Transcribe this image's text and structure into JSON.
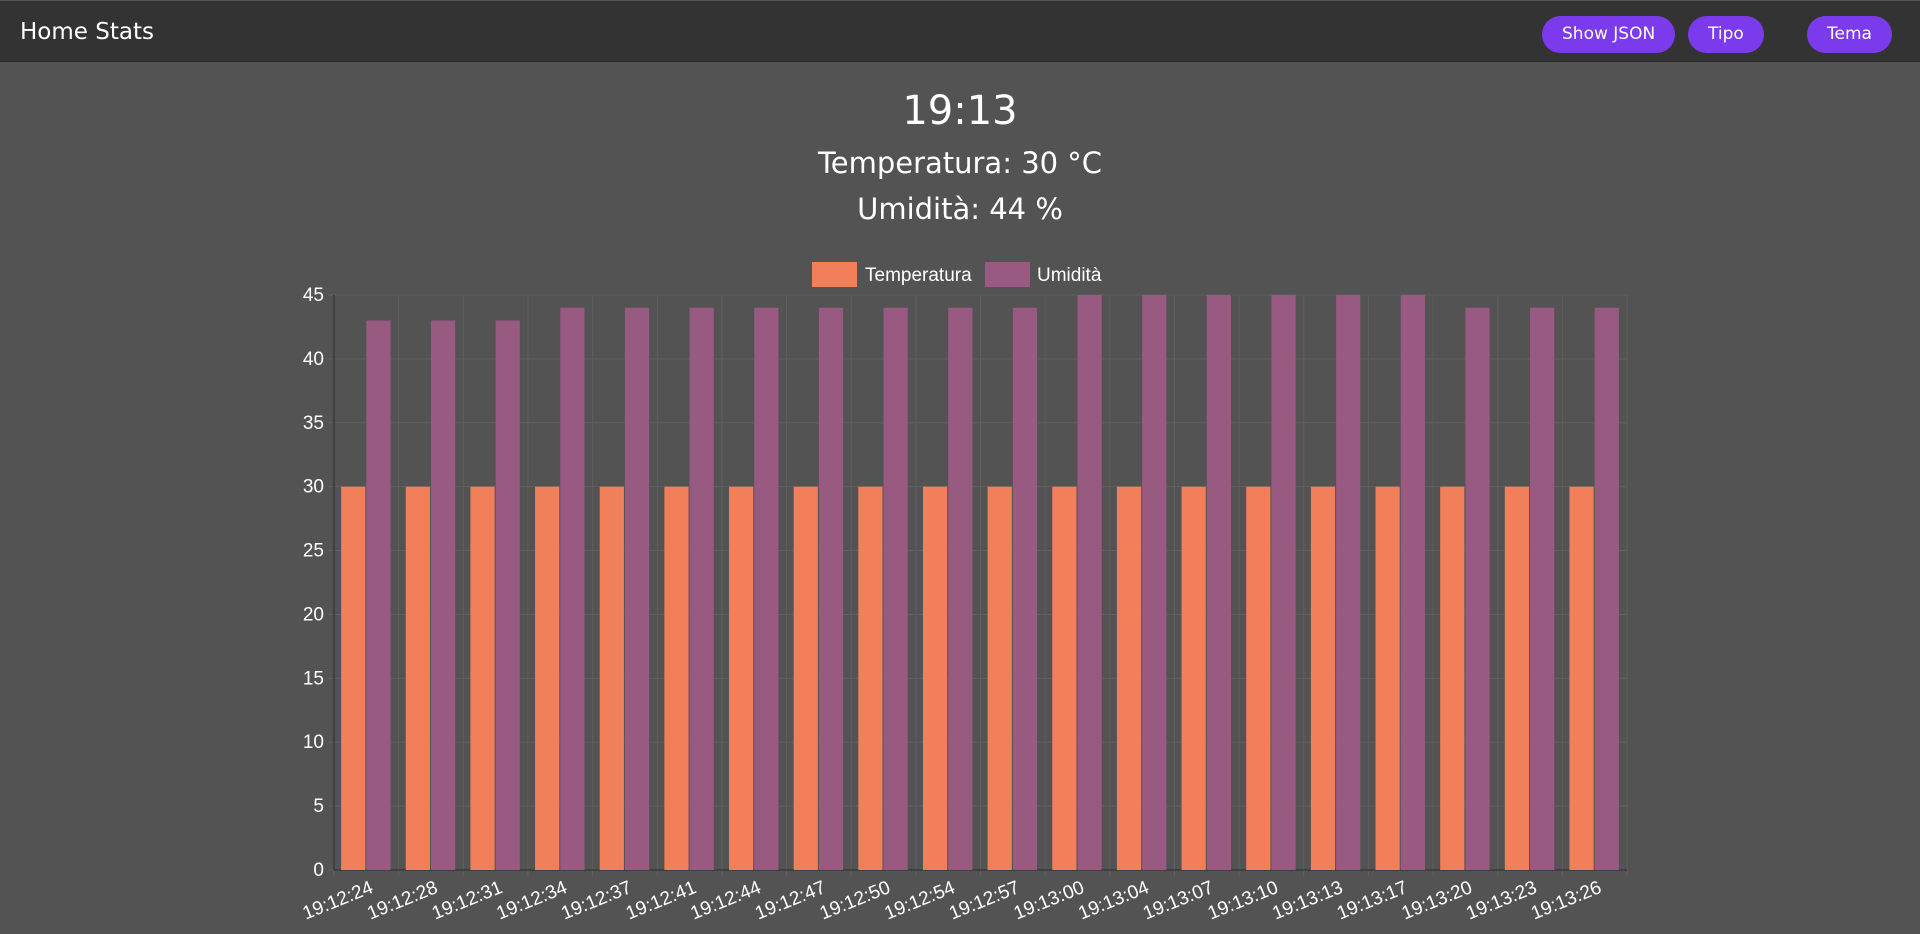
{
  "navbar": {
    "title": "Home Stats",
    "buttons": {
      "show_json": "Show JSON",
      "tipo": "Tipo",
      "tema": "Tema"
    }
  },
  "header": {
    "time": "19:13",
    "temperature": "Temperatura: 30 °C",
    "humidity": "Umidità: 44 %"
  },
  "colors": {
    "background": "#535353",
    "navbar": "#333333",
    "button": "#7c3aed",
    "temperature": "#f07f5a",
    "humidity": "#985a80"
  },
  "chart_data": {
    "type": "bar",
    "categories": [
      "19:12:24",
      "19:12:28",
      "19:12:31",
      "19:12:34",
      "19:12:37",
      "19:12:41",
      "19:12:44",
      "19:12:47",
      "19:12:50",
      "19:12:54",
      "19:12:57",
      "19:13:00",
      "19:13:04",
      "19:13:07",
      "19:13:10",
      "19:13:13",
      "19:13:17",
      "19:13:20",
      "19:13:23",
      "19:13:26"
    ],
    "series": [
      {
        "name": "Temperatura",
        "color": "#f07f5a",
        "values": [
          30,
          30,
          30,
          30,
          30,
          30,
          30,
          30,
          30,
          30,
          30,
          30,
          30,
          30,
          30,
          30,
          30,
          30,
          30,
          30
        ]
      },
      {
        "name": "Umidità",
        "color": "#985a80",
        "values": [
          43,
          43,
          43,
          44,
          44,
          44,
          44,
          44,
          44,
          44,
          44,
          45,
          45,
          45,
          45,
          45,
          45,
          44,
          44,
          44
        ]
      }
    ],
    "ylim": [
      0,
      45
    ],
    "yticks": [
      0,
      5,
      10,
      15,
      20,
      25,
      30,
      35,
      40,
      45
    ],
    "legend": "top",
    "grid": true
  }
}
